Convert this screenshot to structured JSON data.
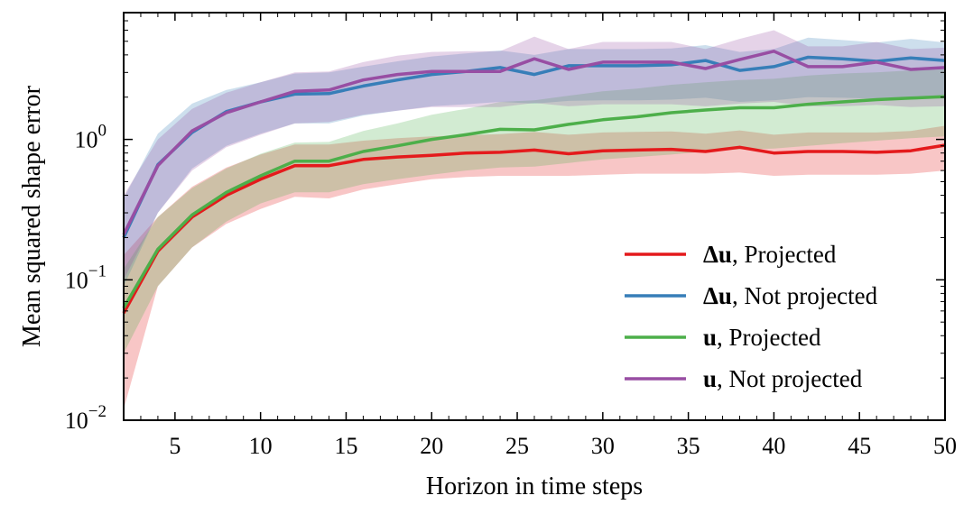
{
  "chart_data": {
    "type": "line",
    "title": "",
    "xlabel": "Horizon in time steps",
    "ylabel": "Mean squared shape error",
    "yscale": "log",
    "xlim": [
      2,
      50
    ],
    "ylim": [
      0.01,
      8
    ],
    "xticks": [
      5,
      10,
      15,
      20,
      25,
      30,
      35,
      40,
      45,
      50
    ],
    "yticks": [
      {
        "value": 0.01,
        "base": "10",
        "exp": "−2"
      },
      {
        "value": 0.1,
        "base": "10",
        "exp": "−1"
      },
      {
        "value": 1,
        "base": "10",
        "exp": "0"
      }
    ],
    "legend_position": "lower-right",
    "series": [
      {
        "name": "Δu, Projected",
        "legend_bold": "Δu",
        "legend_rest": ", Projected",
        "color": "#e41a1c",
        "x": [
          2,
          4,
          6,
          8,
          10,
          12,
          14,
          16,
          18,
          20,
          22,
          24,
          26,
          28,
          30,
          32,
          34,
          36,
          38,
          40,
          42,
          44,
          46,
          48,
          50
        ],
        "values": [
          0.058,
          0.16,
          0.28,
          0.4,
          0.52,
          0.65,
          0.65,
          0.72,
          0.75,
          0.77,
          0.8,
          0.81,
          0.84,
          0.79,
          0.83,
          0.84,
          0.85,
          0.82,
          0.88,
          0.8,
          0.82,
          0.82,
          0.81,
          0.83,
          0.91
        ],
        "lower": [
          0.012,
          0.09,
          0.17,
          0.25,
          0.32,
          0.39,
          0.38,
          0.44,
          0.48,
          0.52,
          0.54,
          0.55,
          0.55,
          0.55,
          0.56,
          0.57,
          0.57,
          0.57,
          0.58,
          0.55,
          0.56,
          0.56,
          0.56,
          0.57,
          0.6
        ],
        "upper": [
          0.15,
          0.28,
          0.46,
          0.63,
          0.78,
          0.92,
          0.92,
          0.98,
          1.02,
          1.05,
          1.07,
          1.09,
          1.13,
          1.08,
          1.12,
          1.13,
          1.14,
          1.1,
          1.16,
          1.08,
          1.12,
          1.12,
          1.12,
          1.15,
          1.25
        ]
      },
      {
        "name": "Δu, Not projected",
        "legend_bold": "Δu",
        "legend_rest": ", Not projected",
        "color": "#377eb8",
        "x": [
          2,
          4,
          6,
          8,
          10,
          12,
          14,
          16,
          18,
          20,
          22,
          24,
          26,
          28,
          30,
          32,
          34,
          36,
          38,
          40,
          42,
          44,
          46,
          48,
          50
        ],
        "values": [
          0.2,
          0.66,
          1.12,
          1.58,
          1.85,
          2.1,
          2.12,
          2.4,
          2.65,
          2.9,
          3.05,
          3.25,
          2.9,
          3.35,
          3.35,
          3.35,
          3.4,
          3.65,
          3.1,
          3.3,
          3.85,
          3.75,
          3.6,
          3.8,
          3.65
        ],
        "lower": [
          0.09,
          0.3,
          0.62,
          0.9,
          1.1,
          1.3,
          1.3,
          1.48,
          1.6,
          1.72,
          1.78,
          1.85,
          1.8,
          1.88,
          1.9,
          1.9,
          1.92,
          1.98,
          1.85,
          1.9,
          2.0,
          1.98,
          1.95,
          2.0,
          1.95
        ],
        "upper": [
          0.38,
          1.1,
          1.8,
          2.25,
          2.55,
          2.95,
          3.0,
          3.3,
          3.6,
          3.9,
          4.1,
          4.3,
          4.0,
          4.4,
          4.4,
          4.4,
          4.45,
          4.7,
          4.2,
          4.4,
          5.3,
          5.1,
          4.9,
          5.2,
          4.9
        ]
      },
      {
        "name": "u, Projected",
        "legend_bold": "u",
        "legend_rest": ", Projected",
        "color": "#4daf4a",
        "x": [
          2,
          4,
          6,
          8,
          10,
          12,
          14,
          16,
          18,
          20,
          22,
          24,
          26,
          28,
          30,
          32,
          34,
          36,
          38,
          40,
          42,
          44,
          46,
          48,
          50
        ],
        "values": [
          0.063,
          0.165,
          0.29,
          0.42,
          0.55,
          0.7,
          0.7,
          0.82,
          0.9,
          1.0,
          1.08,
          1.18,
          1.17,
          1.28,
          1.38,
          1.45,
          1.55,
          1.62,
          1.68,
          1.68,
          1.78,
          1.85,
          1.92,
          1.97,
          2.02
        ],
        "lower": [
          0.03,
          0.09,
          0.17,
          0.26,
          0.35,
          0.42,
          0.42,
          0.48,
          0.52,
          0.56,
          0.6,
          0.63,
          0.64,
          0.68,
          0.72,
          0.75,
          0.78,
          0.82,
          0.85,
          0.86,
          0.9,
          0.94,
          0.98,
          1.02,
          1.05
        ],
        "upper": [
          0.12,
          0.28,
          0.45,
          0.62,
          0.79,
          0.95,
          0.96,
          1.15,
          1.3,
          1.5,
          1.65,
          1.85,
          1.9,
          2.05,
          2.2,
          2.3,
          2.45,
          2.55,
          2.65,
          2.7,
          2.85,
          2.95,
          3.0,
          3.1,
          3.15
        ]
      },
      {
        "name": "u, Not projected",
        "legend_bold": "u",
        "legend_rest": ", Not projected",
        "color": "#984ea3",
        "x": [
          2,
          4,
          6,
          8,
          10,
          12,
          14,
          16,
          18,
          20,
          22,
          24,
          26,
          28,
          30,
          32,
          34,
          36,
          38,
          40,
          42,
          44,
          46,
          48,
          50
        ],
        "values": [
          0.21,
          0.65,
          1.15,
          1.55,
          1.85,
          2.2,
          2.25,
          2.65,
          2.9,
          3.05,
          3.05,
          3.05,
          3.75,
          3.15,
          3.55,
          3.55,
          3.55,
          3.2,
          3.7,
          4.25,
          3.3,
          3.3,
          3.55,
          3.15,
          3.25
        ],
        "lower": [
          0.1,
          0.3,
          0.6,
          0.88,
          1.08,
          1.3,
          1.33,
          1.5,
          1.6,
          1.7,
          1.7,
          1.7,
          1.82,
          1.72,
          1.78,
          1.78,
          1.78,
          1.72,
          1.8,
          1.85,
          1.72,
          1.72,
          1.76,
          1.7,
          1.72
        ],
        "upper": [
          0.4,
          1.0,
          1.65,
          2.15,
          2.55,
          3.0,
          3.05,
          3.55,
          3.95,
          4.2,
          4.25,
          4.25,
          5.4,
          4.4,
          4.95,
          4.95,
          4.95,
          4.4,
          5.2,
          6.0,
          4.6,
          4.6,
          4.95,
          4.4,
          4.5
        ]
      }
    ]
  }
}
